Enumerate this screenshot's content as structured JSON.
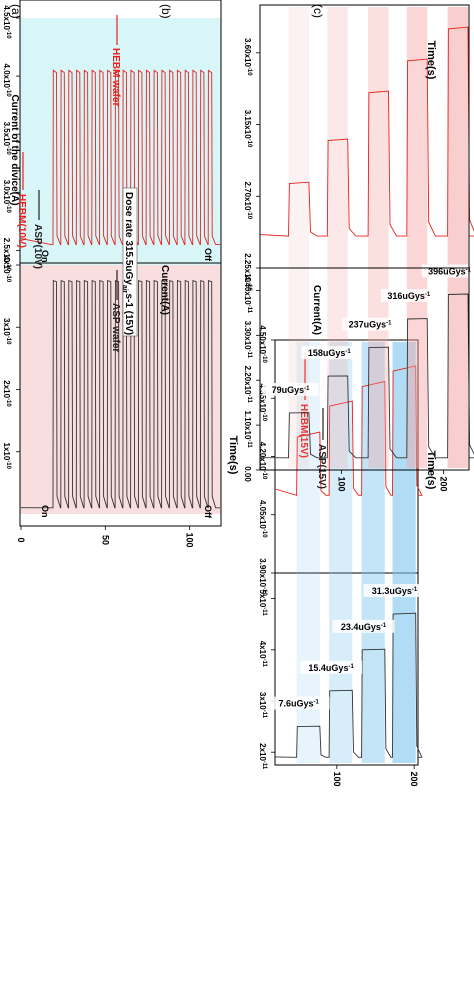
{
  "panels": [
    {
      "id": "a",
      "label": "(a)",
      "ylabel": "Current of the divice(A)",
      "xlabel": "Time(s)",
      "xticks": [
        "0",
        "50",
        "100"
      ],
      "top_ticks": [
        "4.5x10-10",
        "4.0x10-10",
        "3.5x10-10",
        "3.0x10-10",
        "2.5x10-10"
      ],
      "bot_ticks": [
        "4x10-10",
        "3x10-10",
        "2x10-10",
        "1x10-10"
      ],
      "annotations": {
        "on_top": "On",
        "off_top": "Off",
        "on_bot": "On",
        "off_bot": "Off",
        "dose": "Dose rate 315.5uGy",
        "dose_sub": "air",
        "dose_tail": "s-1 (15V)"
      },
      "legend": [
        {
          "name": "HEBM wafer",
          "color": "#e8211d"
        },
        {
          "name": "ASP wafer",
          "color": "#222222"
        }
      ]
    },
    {
      "id": "b",
      "label": "(b)",
      "ylabel": "Current(A)",
      "xlabel": "Time(s)",
      "xticks": [
        "100",
        "200"
      ],
      "top_ticks": [
        "4.50x10-10",
        "4.35x10-10",
        "4.20x10-10",
        "4.05x10-10",
        "3.90x10-10"
      ],
      "bot_ticks": [
        "5x10-11",
        "4x10-11",
        "3x10-11",
        "2x10-11"
      ],
      "legend": [
        {
          "name": "HEBM(15V)",
          "color": "#e8211d"
        },
        {
          "name": "ASP(15V)",
          "color": "#222222"
        }
      ],
      "dose_labels": [
        "7.6uGys-1",
        "15.4uGys-1",
        "23.4uGys-1",
        "31.3uGys-1"
      ]
    },
    {
      "id": "c",
      "label": "(c)",
      "ylabel": "Current(A)",
      "xlabel": "Time(s)",
      "xticks": [
        "100",
        "200"
      ],
      "top_ticks": [
        "3.60x10-10",
        "3.15x10-10",
        "2.70x10-10",
        "2.25x10-10"
      ],
      "bot_ticks": [
        "4.40x10-11",
        "3.30x10-11",
        "2.20x10-11",
        "1.10x10-11",
        "0.00"
      ],
      "legend": [
        {
          "name": "HEBM(10V)",
          "color": "#e8211d"
        },
        {
          "name": "ASP(10V)",
          "color": "#222222"
        }
      ],
      "dose_labels": [
        "79uGys-1",
        "158uGys-1",
        "237uGys-1",
        "316uGys-1",
        "396uGys-1"
      ]
    }
  ],
  "chart_data": [
    {
      "panel": "a",
      "type": "line",
      "xlabel": "Time(s)",
      "ylabel": "Current of the divice(A)",
      "xlim": [
        0,
        118
      ],
      "series": [
        {
          "name": "HEBM wafer",
          "color": "#e8211d",
          "ylim": [
            2.4e-10,
            4.5e-10
          ],
          "off": 2.55e-10,
          "on": 4.05e-10,
          "pulse_start": 19,
          "period": 4.6,
          "count": 21
        },
        {
          "name": "ASP wafer",
          "color": "#222222",
          "ylim": [
            0,
            4e-10
          ],
          "off": 1e-11,
          "on": 3.75e-10,
          "pulse_start": 19,
          "period": 4.6,
          "count": 21
        }
      ]
    },
    {
      "panel": "b",
      "type": "line",
      "xlabel": "Time(s)",
      "ylabel": "Current(A)",
      "xlim": [
        20,
        205
      ],
      "pulses": [
        {
          "start": 48,
          "end": 78,
          "dose": "7.6uGys-1",
          "hebm_on": 4.25e-10,
          "asp_on": 2.5e-11
        },
        {
          "start": 90,
          "end": 120,
          "dose": "15.4uGys-1",
          "hebm_on": 4.33e-10,
          "asp_on": 3.2e-11
        },
        {
          "start": 132,
          "end": 162,
          "dose": "23.4uGys-1",
          "hebm_on": 4.38e-10,
          "asp_on": 4e-11
        },
        {
          "start": 172,
          "end": 202,
          "dose": "31.3uGys-1",
          "hebm_on": 4.42e-10,
          "asp_on": 4.7e-11
        }
      ],
      "series": [
        {
          "name": "HEBM(15V)",
          "ylim": [
            3.9e-10,
            4.5e-10
          ],
          "off": 4.1e-10
        },
        {
          "name": "ASP(15V)",
          "ylim": [
            1.75e-11,
            5.5e-11
          ],
          "off": 1.9e-11
        }
      ]
    },
    {
      "panel": "c",
      "type": "line",
      "xlabel": "Time(s)",
      "ylabel": "Current(A)",
      "xlim": [
        20,
        225
      ],
      "pulses": [
        {
          "start": 48,
          "end": 68,
          "dose": "79uGys-1",
          "hebm_on": 2.78e-10,
          "asp_on": 1.4e-11
        },
        {
          "start": 86,
          "end": 106,
          "dose": "158uGys-1",
          "hebm_on": 3.05e-10,
          "asp_on": 2.3e-11
        },
        {
          "start": 126,
          "end": 146,
          "dose": "237uGys-1",
          "hebm_on": 3.35e-10,
          "asp_on": 3e-11
        },
        {
          "start": 164,
          "end": 184,
          "dose": "316uGys-1",
          "hebm_on": 3.55e-10,
          "asp_on": 3.7e-11
        },
        {
          "start": 204,
          "end": 224,
          "dose": "396uGys-1",
          "hebm_on": 3.75e-10,
          "asp_on": 4.3e-11
        }
      ],
      "series": [
        {
          "name": "HEBM(10V)",
          "ylim": [
            2.25e-10,
            3.9e-10
          ],
          "off": 2.45e-10
        },
        {
          "name": "ASP(10V)",
          "ylim": [
            0,
            4.95e-11
          ],
          "off": 3e-12
        }
      ]
    }
  ]
}
